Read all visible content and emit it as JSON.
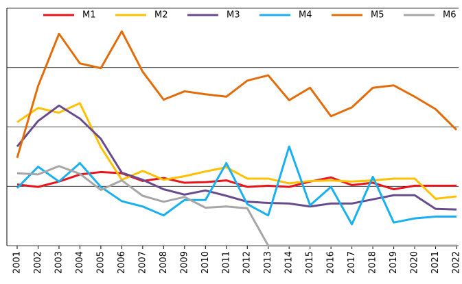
{
  "chart_data": {
    "type": "line",
    "x": [
      "2001",
      "2002",
      "2003",
      "2004",
      "2005",
      "2006",
      "2007",
      "2008",
      "2009",
      "2010",
      "2011",
      "2012",
      "2013",
      "2014",
      "2015",
      "2016",
      "2017",
      "2018",
      "2019",
      "2020",
      "2021",
      "2022"
    ],
    "series": [
      {
        "name": "M1",
        "color": "#e8141b",
        "values": [
          1.03,
          0.99,
          1.08,
          1.2,
          1.24,
          1.22,
          1.09,
          1.14,
          1.06,
          1.07,
          1.1,
          0.99,
          1.01,
          0.99,
          1.08,
          1.15,
          1.02,
          1.06,
          0.95,
          1.01,
          1.01,
          1.01
        ]
      },
      {
        "name": "M2",
        "color": "#ffc000",
        "values": [
          2.08,
          2.32,
          2.24,
          2.4,
          1.66,
          1.11,
          1.26,
          1.11,
          1.17,
          1.25,
          1.32,
          1.13,
          1.13,
          1.05,
          1.09,
          1.1,
          1.08,
          1.1,
          1.13,
          1.13,
          0.79,
          0.83
        ]
      },
      {
        "name": "M3",
        "color": "#674b8c",
        "values": [
          1.67,
          2.1,
          2.36,
          2.14,
          1.8,
          1.23,
          1.11,
          0.95,
          0.86,
          0.93,
          0.84,
          0.74,
          0.72,
          0.71,
          0.66,
          0.71,
          0.71,
          0.78,
          0.85,
          0.85,
          0.62,
          0.61
        ]
      },
      {
        "name": "M4",
        "color": "#1ab0f0",
        "values": [
          0.97,
          1.33,
          1.08,
          1.39,
          0.99,
          0.75,
          0.66,
          0.51,
          0.77,
          0.77,
          1.39,
          0.7,
          0.51,
          1.67,
          0.68,
          0.99,
          0.36,
          1.16,
          0.39,
          0.46,
          0.49,
          0.49
        ]
      },
      {
        "name": "M5",
        "color": "#e36c0a",
        "values": [
          1.48,
          2.69,
          3.57,
          3.07,
          2.99,
          3.61,
          2.93,
          2.46,
          2.6,
          2.55,
          2.51,
          2.78,
          2.87,
          2.45,
          2.66,
          2.18,
          2.33,
          2.66,
          2.7,
          2.51,
          2.3,
          1.95
        ]
      },
      {
        "name": "M6",
        "color": "#a6a6a6",
        "values": [
          1.22,
          1.2,
          1.34,
          1.21,
          0.94,
          1.1,
          0.84,
          0.74,
          0.82,
          0.64,
          0.66,
          0.63,
          0,
          0,
          0,
          0,
          0,
          0,
          0,
          0,
          0,
          0
        ]
      }
    ],
    "ylim": [
      0,
      4
    ],
    "yticks": [
      0,
      1,
      2,
      3,
      4
    ],
    "grid": true,
    "legend": "top"
  }
}
